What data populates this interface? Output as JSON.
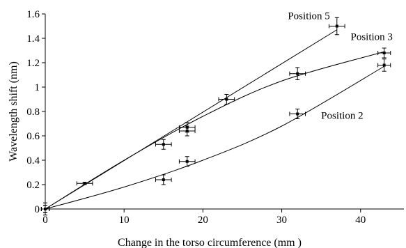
{
  "chart_data": {
    "type": "scatter",
    "title": "",
    "xlabel": "Change in the torso circumference (mm )",
    "ylabel": "Wavelength shift (nm)",
    "xlim": [
      0,
      45.5
    ],
    "ylim": [
      0,
      1.6
    ],
    "xticks": [
      0,
      10,
      20,
      30,
      40
    ],
    "xtick_labels": [
      "0",
      "10",
      "20",
      "30",
      "40"
    ],
    "yticks": [
      0,
      0.2,
      0.4,
      0.6,
      0.8,
      1,
      1.2,
      1.4,
      1.6
    ],
    "ytick_labels": [
      "0",
      "0.2",
      "0.4",
      "0.6",
      "0.8",
      "1",
      "1.2",
      "1.4",
      "1.6"
    ],
    "grid": false,
    "legend": "none; series names printed next to curves",
    "color": "#000000",
    "series": [
      {
        "name": "Position 5",
        "label_anchor": [
          37,
          1.5
        ],
        "points": [
          {
            "x": 0,
            "y": 0,
            "xerr": 0.5,
            "yerr": 0.05
          },
          {
            "x": 5,
            "y": 0.21,
            "xerr": 1.0,
            "yerr": 0.01
          },
          {
            "x": 18,
            "y": 0.67,
            "xerr": 1.0,
            "yerr": 0.04
          },
          {
            "x": 23,
            "y": 0.9,
            "xerr": 1.0,
            "yerr": 0.04
          },
          {
            "x": 37,
            "y": 1.5,
            "xerr": 1.0,
            "yerr": 0.07
          }
        ],
        "fit": [
          [
            0,
            0
          ],
          [
            37,
            1.47
          ]
        ]
      },
      {
        "name": "Position 3",
        "label_anchor": [
          43,
          1.33
        ],
        "points": [
          {
            "x": 0,
            "y": 0,
            "xerr": 0.5,
            "yerr": 0.03
          },
          {
            "x": 15,
            "y": 0.53,
            "xerr": 1.0,
            "yerr": 0.04
          },
          {
            "x": 18,
            "y": 0.64,
            "xerr": 1.0,
            "yerr": 0.04
          },
          {
            "x": 32,
            "y": 1.11,
            "xerr": 1.0,
            "yerr": 0.05
          },
          {
            "x": 43,
            "y": 1.28,
            "xerr": 0.8,
            "yerr": 0.04
          }
        ],
        "fit": [
          [
            0,
            0
          ],
          [
            10,
            0.4
          ],
          [
            20,
            0.76
          ],
          [
            30,
            1.05
          ],
          [
            43,
            1.29
          ]
        ]
      },
      {
        "name": "Position 2",
        "label_anchor": [
          35,
          0.77
        ],
        "points": [
          {
            "x": 0,
            "y": 0,
            "xerr": 0.5,
            "yerr": 0.03
          },
          {
            "x": 15,
            "y": 0.24,
            "xerr": 1.0,
            "yerr": 0.04
          },
          {
            "x": 18,
            "y": 0.39,
            "xerr": 1.0,
            "yerr": 0.04
          },
          {
            "x": 32,
            "y": 0.78,
            "xerr": 1.0,
            "yerr": 0.04
          },
          {
            "x": 43,
            "y": 1.18,
            "xerr": 0.8,
            "yerr": 0.05
          }
        ],
        "fit": [
          [
            0,
            0
          ],
          [
            10,
            0.18
          ],
          [
            20,
            0.4
          ],
          [
            30,
            0.68
          ],
          [
            43,
            1.17
          ]
        ]
      }
    ]
  }
}
